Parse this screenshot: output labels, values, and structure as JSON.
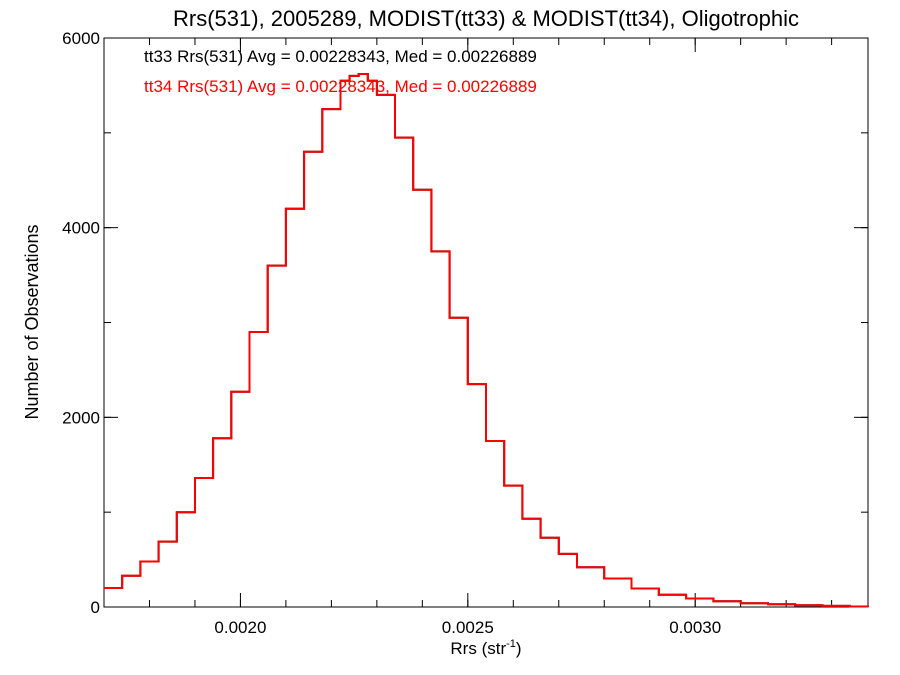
{
  "chart_data": {
    "type": "line",
    "style": "step histogram",
    "title": "Rrs(531), 2005289, MODIST(tt33) & MODIST(tt34), Oligotrophic",
    "xlabel": "Rrs (str",
    "xlabel_sup": "-1",
    "xlabel_close": ")",
    "ylabel": "Number of Observations",
    "xlim": [
      0.0017,
      0.00338
    ],
    "ylim": [
      0,
      6000
    ],
    "xticks": [
      {
        "value": 0.002,
        "label": "0.0020"
      },
      {
        "value": 0.0025,
        "label": "0.0025"
      },
      {
        "value": 0.003,
        "label": "0.0030"
      }
    ],
    "xminor_step": 0.0001,
    "yticks": [
      {
        "value": 0,
        "label": "0"
      },
      {
        "value": 2000,
        "label": "2000"
      },
      {
        "value": 4000,
        "label": "4000"
      },
      {
        "value": 6000,
        "label": "6000"
      }
    ],
    "yminor_step": 1000,
    "grid": false,
    "legend_position": "top-left",
    "annotations": [
      {
        "text": "tt33 Rrs(531) Avg = 0.00228343, Med = 0.00226889",
        "color": "#000000"
      },
      {
        "text": "tt34 Rrs(531) Avg = 0.00228343, Med = 0.00226889",
        "color": "#ff0000"
      }
    ],
    "series": [
      {
        "name": "tt33",
        "color": "#000000",
        "x": [
          0.0017,
          0.00174,
          0.00178,
          0.00182,
          0.00186,
          0.0019,
          0.00194,
          0.00198,
          0.00202,
          0.00206,
          0.0021,
          0.00214,
          0.00218,
          0.00222,
          0.00224,
          0.00226,
          0.00228,
          0.0023,
          0.00234,
          0.00238,
          0.00242,
          0.00246,
          0.0025,
          0.00254,
          0.00258,
          0.00262,
          0.00266,
          0.0027,
          0.00274,
          0.0028,
          0.00286,
          0.00292,
          0.00298,
          0.00304,
          0.0031,
          0.00316,
          0.00322,
          0.00328,
          0.00334,
          0.00338
        ],
        "y": [
          200,
          330,
          480,
          690,
          1000,
          1360,
          1780,
          2270,
          2900,
          3600,
          4200,
          4800,
          5250,
          5550,
          5600,
          5620,
          5550,
          5400,
          4950,
          4400,
          3750,
          3050,
          2350,
          1750,
          1280,
          930,
          730,
          560,
          420,
          300,
          195,
          130,
          90,
          60,
          40,
          28,
          18,
          12,
          5,
          3
        ]
      },
      {
        "name": "tt34",
        "color": "#ff0000",
        "x": [
          0.0017,
          0.00174,
          0.00178,
          0.00182,
          0.00186,
          0.0019,
          0.00194,
          0.00198,
          0.00202,
          0.00206,
          0.0021,
          0.00214,
          0.00218,
          0.00222,
          0.00224,
          0.00226,
          0.00228,
          0.0023,
          0.00234,
          0.00238,
          0.00242,
          0.00246,
          0.0025,
          0.00254,
          0.00258,
          0.00262,
          0.00266,
          0.0027,
          0.00274,
          0.0028,
          0.00286,
          0.00292,
          0.00298,
          0.00304,
          0.0031,
          0.00316,
          0.00322,
          0.00328,
          0.00334,
          0.00338
        ],
        "y": [
          200,
          330,
          480,
          690,
          1000,
          1360,
          1780,
          2270,
          2900,
          3600,
          4200,
          4800,
          5250,
          5550,
          5600,
          5620,
          5550,
          5400,
          4950,
          4400,
          3750,
          3050,
          2350,
          1750,
          1280,
          930,
          730,
          560,
          420,
          300,
          195,
          130,
          90,
          60,
          40,
          28,
          18,
          12,
          5,
          3
        ]
      }
    ]
  }
}
